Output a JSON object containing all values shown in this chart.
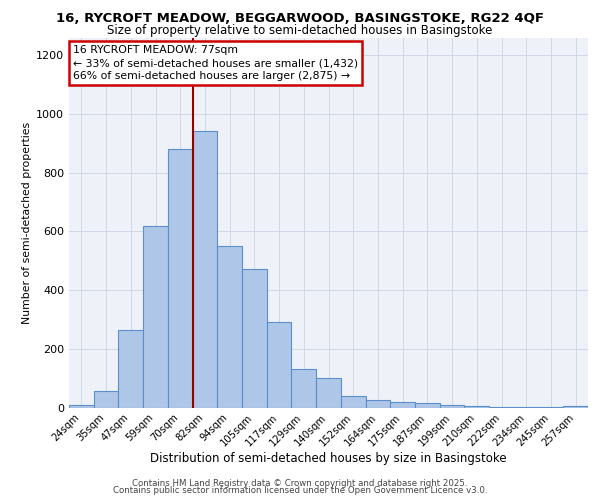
{
  "title_line1": "16, RYCROFT MEADOW, BEGGARWOOD, BASINGSTOKE, RG22 4QF",
  "title_line2": "Size of property relative to semi-detached houses in Basingstoke",
  "xlabel": "Distribution of semi-detached houses by size in Basingstoke",
  "ylabel": "Number of semi-detached properties",
  "categories": [
    "24sqm",
    "35sqm",
    "47sqm",
    "59sqm",
    "70sqm",
    "82sqm",
    "94sqm",
    "105sqm",
    "117sqm",
    "129sqm",
    "140sqm",
    "152sqm",
    "164sqm",
    "175sqm",
    "187sqm",
    "199sqm",
    "210sqm",
    "222sqm",
    "234sqm",
    "245sqm",
    "257sqm"
  ],
  "values": [
    10,
    57,
    265,
    617,
    880,
    940,
    550,
    470,
    290,
    132,
    100,
    38,
    27,
    18,
    15,
    8,
    4,
    2,
    1,
    1,
    5
  ],
  "bar_color": "#aec6e8",
  "bar_edge_color": "#5b8fc9",
  "grid_color": "#d0d8e8",
  "bg_color": "#eef2f8",
  "vline_color": "#990000",
  "annotation_title": "16 RYCROFT MEADOW: 77sqm",
  "annotation_smaller": "← 33% of semi-detached houses are smaller (1,432)",
  "annotation_larger": "66% of semi-detached houses are larger (2,875) →",
  "annotation_box_facecolor": "#ffffff",
  "annotation_box_edgecolor": "#cc0000",
  "footer_line1": "Contains HM Land Registry data © Crown copyright and database right 2025.",
  "footer_line2": "Contains public sector information licensed under the Open Government Licence v3.0.",
  "ylim": [
    0,
    1260
  ],
  "yticks": [
    0,
    200,
    400,
    600,
    800,
    1000,
    1200
  ]
}
